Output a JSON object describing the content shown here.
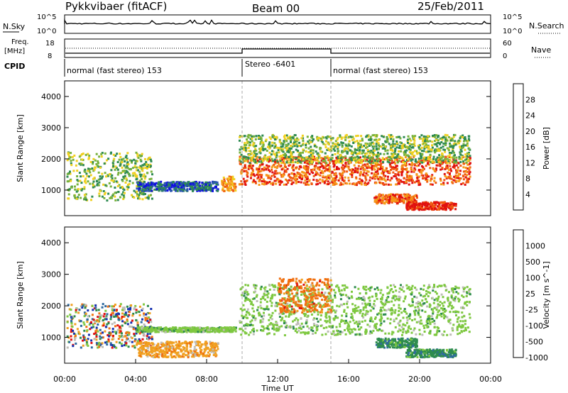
{
  "header": {
    "station": "Pykkvibaer (fitACF)",
    "beam": "Beam 00",
    "date": "25/Feb/2011"
  },
  "noise_panel": {
    "left_label": "N.Sky",
    "left_ticks": [
      "10^5",
      "10^0"
    ],
    "right_label": "N.Search",
    "right_ticks": [
      "10^5",
      "10^0"
    ]
  },
  "freq_panel": {
    "left_label_line1": "Freq.",
    "left_label_line2": "[MHz]",
    "left_ticks": [
      "18",
      "8"
    ],
    "right_label": "Nave",
    "right_ticks": [
      "60",
      "0"
    ]
  },
  "cpid_panel": {
    "label": "CPID",
    "segments": [
      {
        "text": "normal (fast stereo) 153",
        "start_h": 0,
        "end_h": 10
      },
      {
        "text": "Stereo -6401",
        "start_h": 10,
        "end_h": 15
      },
      {
        "text": "normal (fast stereo) 153",
        "start_h": 15,
        "end_h": 24
      }
    ]
  },
  "chart_data": [
    {
      "type": "heatmap",
      "name": "power",
      "xlabel": "",
      "ylabel": "Slant Range [km]",
      "xlim": [
        0,
        24
      ],
      "ylim": [
        180,
        4500
      ],
      "yticks": [
        1000,
        2000,
        3000,
        4000
      ],
      "colorbar": {
        "label": "Power [dB]",
        "ticks": [
          "4",
          "8",
          "12",
          "16",
          "20",
          "24",
          "28"
        ],
        "colors": [
          "#1010e0",
          "#2a55b0",
          "#2e8a52",
          "#78b23c",
          "#f0d020",
          "#f59a1a",
          "#f05a10",
          "#e01010"
        ]
      },
      "echo_regions": [
        {
          "t0": 0.1,
          "t1": 4.9,
          "r0": 700,
          "r1": 2250,
          "level": 3
        },
        {
          "t0": 4.0,
          "t1": 8.6,
          "r0": 1000,
          "r1": 1300,
          "level": 1
        },
        {
          "t0": 8.8,
          "t1": 9.6,
          "r0": 1000,
          "r1": 1500,
          "level": 5
        },
        {
          "t0": 9.8,
          "t1": 22.8,
          "r0": 1200,
          "r1": 2100,
          "level": 6
        },
        {
          "t0": 9.8,
          "t1": 22.8,
          "r0": 1900,
          "r1": 2800,
          "level": 3
        },
        {
          "t0": 17.4,
          "t1": 19.8,
          "r0": 600,
          "r1": 900,
          "level": 6
        },
        {
          "t0": 19.2,
          "t1": 22.0,
          "r0": 400,
          "r1": 650,
          "level": 7
        }
      ]
    },
    {
      "type": "heatmap",
      "name": "velocity",
      "xlabel": "Time UT",
      "ylabel": "Slant Range [km]",
      "xlim": [
        0,
        24
      ],
      "ylim": [
        180,
        4500
      ],
      "yticks": [
        1000,
        2000,
        3000,
        4000
      ],
      "xticks": [
        "00:00",
        "04:00",
        "08:00",
        "12:00",
        "16:00",
        "20:00",
        "00:00"
      ],
      "colorbar": {
        "label": "Velocity [m s^-1]",
        "ticks": [
          "1000",
          "500",
          "100",
          "25",
          "-25",
          "-100",
          "-500",
          "-1000"
        ],
        "colors": [
          "#1530b0",
          "#2e6a9e",
          "#2e8c4e",
          "#7ec840",
          "#bdbcb6",
          "#f0a020",
          "#f07010",
          "#e01010"
        ]
      },
      "echo_regions": [
        {
          "t0": 0.1,
          "t1": 4.9,
          "r0": 700,
          "r1": 2100,
          "velocity": "mixed"
        },
        {
          "t0": 4.0,
          "t1": 8.6,
          "r0": 400,
          "r1": 900,
          "velocity": "-100"
        },
        {
          "t0": 4.0,
          "t1": 9.6,
          "r0": 1200,
          "r1": 1350,
          "velocity": "25"
        },
        {
          "t0": 9.8,
          "t1": 22.8,
          "r0": 1100,
          "r1": 2700,
          "velocity": "25"
        },
        {
          "t0": 12.0,
          "t1": 15.0,
          "r0": 1800,
          "r1": 2900,
          "velocity": "-500"
        },
        {
          "t0": 17.5,
          "t1": 19.8,
          "r0": 700,
          "r1": 1000,
          "velocity": "100"
        },
        {
          "t0": 19.2,
          "t1": 22.0,
          "r0": 400,
          "r1": 650,
          "velocity": "100"
        }
      ]
    }
  ]
}
